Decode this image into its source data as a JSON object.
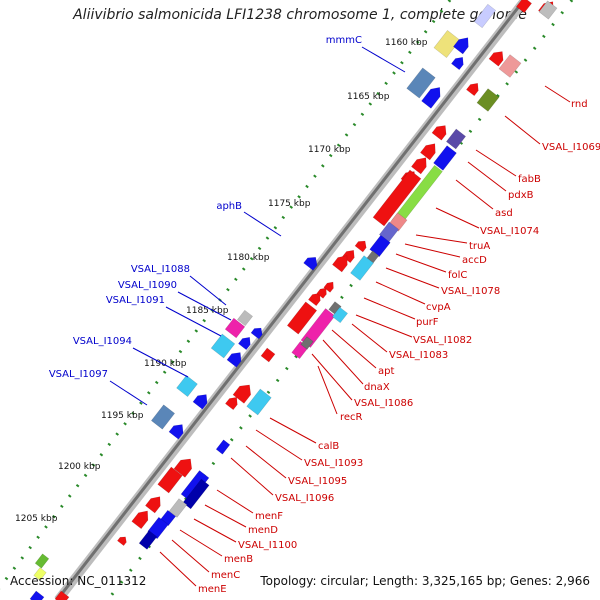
{
  "title": "Aliivibrio salmonicida LFI1238 chromosome 1, complete genome",
  "footer": {
    "accession": "Accession: NC_011312",
    "stats": "Topology: circular; Length: 3,325,165 bp; Genes: 2,966"
  },
  "ruler": [
    "1160 kbp",
    "1165 kbp",
    "1170 kbp",
    "1175 kbp",
    "1180 kbp",
    "1185 kbp",
    "1190 kbp",
    "1195 kbp",
    "1200 kbp",
    "1205 kbp"
  ],
  "labels_left": [
    "mmmC",
    "aphB",
    "VSAL_I1088",
    "VSAL_I1090",
    "VSAL_I1091",
    "VSAL_I1094",
    "VSAL_I1097"
  ],
  "labels_right": [
    "rnd",
    "VSAL_I1069",
    "fabB",
    "pdxB",
    "asd",
    "VSAL_I1074",
    "truA",
    "accD",
    "folC",
    "VSAL_I1078",
    "cvpA",
    "purF",
    "VSAL_I1082",
    "VSAL_I1083",
    "apt",
    "dnaX",
    "VSAL_I1086",
    "recR",
    "calB",
    "VSAL_I1093",
    "VSAL_I1095",
    "VSAL_I1096",
    "menF",
    "menD",
    "VSAL_I1100",
    "menB",
    "menC",
    "menE"
  ],
  "colors": {
    "forward_strand": "#ee1111",
    "reverse_strand": "#1111ee",
    "left_label": "#0000cc",
    "right_label": "#cc0000",
    "ruler_dots": "#2a8a2a"
  }
}
